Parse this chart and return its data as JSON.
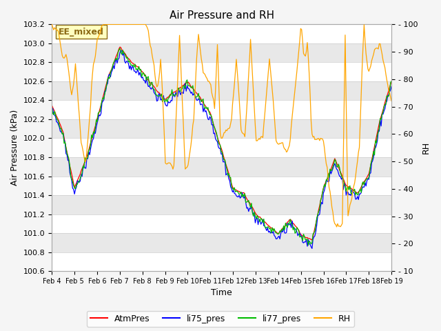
{
  "title": "Air Pressure and RH",
  "xlabel": "Time",
  "ylabel_left": "Air Pressure (kPa)",
  "ylabel_right": "RH",
  "ylim_left": [
    100.6,
    103.2
  ],
  "ylim_right": [
    10,
    100
  ],
  "yticks_left": [
    100.6,
    100.8,
    101.0,
    101.2,
    101.4,
    101.6,
    101.8,
    102.0,
    102.2,
    102.4,
    102.6,
    102.8,
    103.0,
    103.2
  ],
  "yticks_right": [
    10,
    20,
    30,
    40,
    50,
    60,
    70,
    80,
    90,
    100
  ],
  "xtick_labels": [
    "Feb 4",
    "Feb 5",
    "Feb 6",
    "Feb 7",
    "Feb 8",
    "Feb 9",
    "Feb 10",
    "Feb 11",
    "Feb 12",
    "Feb 13",
    "Feb 14",
    "Feb 15",
    "Feb 16",
    "Feb 17",
    "Feb 18",
    "Feb 19"
  ],
  "annotation_text": "EE_mixed",
  "annotation_color": "#8B6914",
  "annotation_bg": "#FFFFC0",
  "colors": {
    "AtmPres": "#FF0000",
    "li75_pres": "#0000FF",
    "li77_pres": "#00BB00",
    "RH": "#FFA500"
  },
  "legend_labels": [
    "AtmPres",
    "li75_pres",
    "li77_pres",
    "RH"
  ],
  "bg_color": "#F0F0F0",
  "plot_bg": "#FFFFFF",
  "grid_color": "#CCCCCC"
}
